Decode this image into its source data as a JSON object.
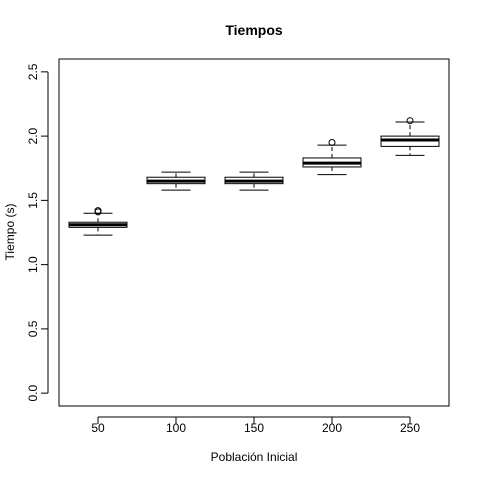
{
  "chart_data": {
    "type": "boxplot",
    "title": "Tiempos",
    "xlabel": "Población Inicial",
    "ylabel": "Tiempo (s)",
    "categories": [
      "50",
      "100",
      "150",
      "200",
      "250"
    ],
    "ylim": [
      -0.1,
      2.6
    ],
    "yticks": [
      "0.0",
      "0.5",
      "1.0",
      "1.5",
      "2.0",
      "2.5"
    ],
    "boxes": [
      {
        "category": "50",
        "whisker_low": 1.23,
        "q1": 1.29,
        "median": 1.31,
        "q3": 1.33,
        "whisker_high": 1.4,
        "outliers": [
          1.41,
          1.42
        ]
      },
      {
        "category": "100",
        "whisker_low": 1.58,
        "q1": 1.63,
        "median": 1.65,
        "q3": 1.68,
        "whisker_high": 1.72,
        "outliers": []
      },
      {
        "category": "150",
        "whisker_low": 1.58,
        "q1": 1.63,
        "median": 1.65,
        "q3": 1.68,
        "whisker_high": 1.72,
        "outliers": []
      },
      {
        "category": "200",
        "whisker_low": 1.7,
        "q1": 1.76,
        "median": 1.79,
        "q3": 1.83,
        "whisker_high": 1.93,
        "outliers": [
          1.95
        ]
      },
      {
        "category": "250",
        "whisker_low": 1.85,
        "q1": 1.92,
        "median": 1.97,
        "q3": 2.0,
        "whisker_high": 2.11,
        "outliers": [
          2.12
        ]
      }
    ],
    "grid": false,
    "legend": "none"
  }
}
